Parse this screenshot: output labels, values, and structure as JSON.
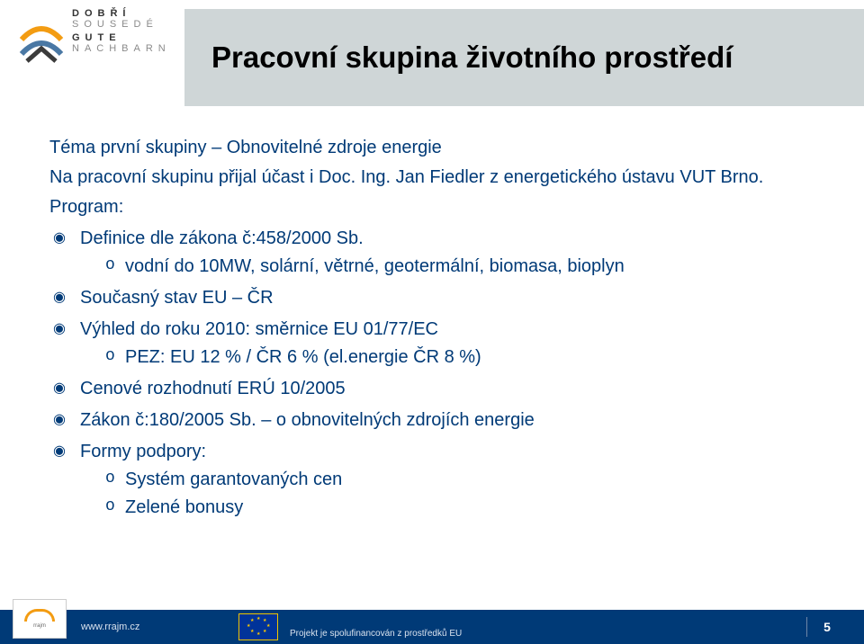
{
  "logo": {
    "row1a": "DOBŘÍ",
    "row1b": "SOUSEDÉ",
    "row2a": "GUTE",
    "row2b": "NACHBARN"
  },
  "title": "Pracovní skupina životního prostředí",
  "intro": {
    "line1": "Téma první skupiny – Obnovitelné zdroje energie",
    "line2": "Na pracovní skupinu přijal účast i Doc. Ing. Jan Fiedler z energetického ústavu VUT Brno.",
    "line3": "Program:"
  },
  "bullets": [
    {
      "text": "Definice dle zákona č:458/2000 Sb.",
      "sub": [
        "vodní do 10MW, solární, větrné, geotermální, biomasa, bioplyn"
      ]
    },
    {
      "text": "Současný stav EU – ČR",
      "sub": []
    },
    {
      "text": "Výhled do roku 2010: směrnice EU 01/77/EC",
      "sub": [
        "PEZ: EU 12 % / ČR 6 % (el.energie ČR 8 %)"
      ]
    },
    {
      "text": "Cenové rozhodnutí ERÚ 10/2005",
      "sub": []
    },
    {
      "text": "Zákon č:180/2005 Sb. – o obnovitelných zdrojích energie",
      "sub": []
    },
    {
      "text": "Formy podpory:",
      "sub": [
        "Systém garantovaných cen",
        "Zelené bonusy"
      ]
    }
  ],
  "footer": {
    "url": "www.rrajm.cz",
    "cofinanced": "Projekt  je spolufinancován  z  prostředků EU",
    "page": "5"
  },
  "colors": {
    "headerBg": "#cfd6d7",
    "bodyText": "#003a77",
    "footerBg": "#003a77",
    "euFlagBg": "#003399",
    "euFlagStar": "#ffcc00",
    "logoOrange": "#f39c12"
  }
}
